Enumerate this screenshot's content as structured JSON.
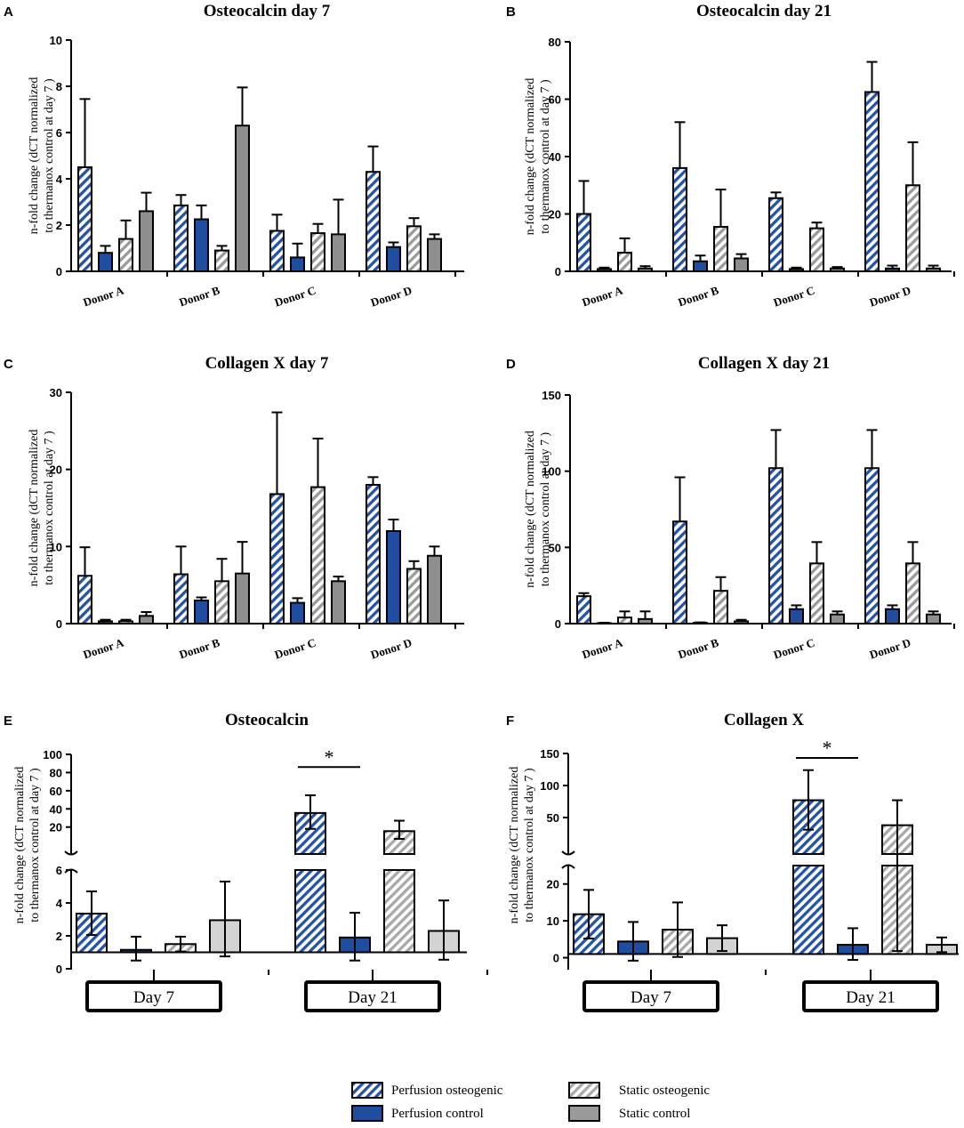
{
  "series_styles": [
    {
      "name": "Perfusion osteogenic",
      "color": "#2452a4",
      "pattern": "hatch"
    },
    {
      "name": "Perfusion control",
      "color": "#1f4ea1",
      "pattern": "solid"
    },
    {
      "name": "Static osteogenic",
      "color": "#9a9a9a",
      "pattern": "hatch"
    },
    {
      "name": "Static control",
      "color": "#8e8e8e",
      "pattern": "solid"
    }
  ],
  "legend": {
    "items": [
      "Perfusion osteogenic",
      "Perfusion control",
      "Static osteogenic",
      "Static control"
    ]
  },
  "chart_data": [
    {
      "letter": "A",
      "type": "bar",
      "title": "Osteocalcin day 7",
      "ylabel": [
        "n-fold change (dCT normalized",
        "to thermanox control at day 7 )"
      ],
      "categories": [
        "Donor A",
        "Donor B",
        "Donor C",
        "Donor D"
      ],
      "ylim": [
        0,
        10
      ],
      "yticks": [
        0,
        2,
        4,
        6,
        8,
        10
      ],
      "series": [
        {
          "name": "Perfusion osteogenic",
          "values": [
            4.5,
            2.85,
            1.75,
            4.3
          ],
          "errors": [
            2.95,
            0.45,
            0.7,
            1.1
          ]
        },
        {
          "name": "Perfusion control",
          "values": [
            0.8,
            2.25,
            0.6,
            1.05
          ],
          "errors": [
            0.3,
            0.6,
            0.6,
            0.2
          ]
        },
        {
          "name": "Static osteogenic",
          "values": [
            1.4,
            0.9,
            1.65,
            1.95
          ],
          "errors": [
            0.8,
            0.2,
            0.4,
            0.35
          ]
        },
        {
          "name": "Static control",
          "values": [
            2.6,
            6.3,
            1.6,
            1.4
          ],
          "errors": [
            0.8,
            1.65,
            1.5,
            0.2
          ]
        }
      ]
    },
    {
      "letter": "B",
      "type": "bar",
      "title": "Osteocalcin day 21",
      "ylabel": [
        "n-fold change (dCT normalized",
        "to thermanox control at day 7 )"
      ],
      "categories": [
        "Donor A",
        "Donor B",
        "Donor C",
        "Donor D"
      ],
      "ylim": [
        0,
        80
      ],
      "yticks": [
        0,
        20,
        40,
        60,
        80
      ],
      "series": [
        {
          "name": "Perfusion osteogenic",
          "values": [
            20,
            36,
            25.5,
            62.5
          ],
          "errors": [
            11.5,
            16,
            2,
            10.5
          ]
        },
        {
          "name": "Perfusion control",
          "values": [
            0.8,
            3.5,
            0.8,
            1
          ],
          "errors": [
            0.5,
            2,
            0.5,
            1
          ]
        },
        {
          "name": "Static osteogenic",
          "values": [
            6.5,
            15.5,
            15,
            30
          ],
          "errors": [
            5,
            13,
            2,
            15
          ]
        },
        {
          "name": "Static control",
          "values": [
            1,
            4.5,
            1,
            1
          ],
          "errors": [
            0.8,
            1.5,
            0.5,
            1
          ]
        }
      ]
    },
    {
      "letter": "C",
      "type": "bar",
      "title": "Collagen X day 7",
      "ylabel": [
        "n-fold change (dCT normalized",
        "to thermanox control at day 7 )"
      ],
      "categories": [
        "Donor A",
        "Donor B",
        "Donor C",
        "Donor D"
      ],
      "ylim": [
        0,
        30
      ],
      "yticks": [
        0,
        10,
        20,
        30
      ],
      "series": [
        {
          "name": "Perfusion osteogenic",
          "values": [
            6.2,
            6.4,
            16.8,
            18
          ],
          "errors": [
            3.7,
            3.6,
            10.6,
            1
          ]
        },
        {
          "name": "Perfusion control",
          "values": [
            0.3,
            3,
            2.7,
            12
          ],
          "errors": [
            0.2,
            0.4,
            0.6,
            1.5
          ]
        },
        {
          "name": "Static osteogenic",
          "values": [
            0.3,
            5.5,
            17.7,
            7.1
          ],
          "errors": [
            0.2,
            2.9,
            6.3,
            1
          ]
        },
        {
          "name": "Static control",
          "values": [
            1,
            6.5,
            5.5,
            8.8
          ],
          "errors": [
            0.5,
            4.1,
            0.6,
            1.2
          ]
        }
      ]
    },
    {
      "letter": "D",
      "type": "bar",
      "title": "Collagen X day 21",
      "ylabel": [
        "n-fold change (dCT normalized",
        "to thermanox control at day 7 )"
      ],
      "categories": [
        "Donor A",
        "Donor B",
        "Donor C",
        "Donor D"
      ],
      "ylim": [
        0,
        150
      ],
      "yticks": [
        0,
        50,
        100,
        150
      ],
      "series": [
        {
          "name": "Perfusion osteogenic",
          "values": [
            18,
            67,
            102,
            102
          ],
          "errors": [
            2,
            29,
            25,
            25
          ]
        },
        {
          "name": "Perfusion control",
          "values": [
            0.3,
            0.5,
            9.5,
            9.5
          ],
          "errors": [
            0.3,
            0.3,
            2.5,
            2.5
          ]
        },
        {
          "name": "Static osteogenic",
          "values": [
            4,
            21.5,
            39.5,
            39.5
          ],
          "errors": [
            4,
            9,
            14,
            14
          ]
        },
        {
          "name": "Static control",
          "values": [
            3,
            1.5,
            6,
            6
          ],
          "errors": [
            5,
            1,
            2,
            2
          ]
        }
      ]
    },
    {
      "letter": "E",
      "type": "bar",
      "title": "Osteocalcin",
      "ylabel": [
        "n-fold change (dCT normalized",
        "to thermanox control at day 7 )"
      ],
      "categories": [
        "Day 7",
        "Day 21"
      ],
      "broken_axis": {
        "lower": {
          "ylim": [
            0,
            6
          ],
          "yticks": [
            0,
            2,
            4,
            6
          ]
        },
        "upper": {
          "ylim": [
            6,
            100
          ],
          "yticks": [
            20,
            40,
            60,
            80,
            100
          ]
        },
        "baseline": 1
      },
      "series": [
        {
          "name": "Perfusion osteogenic",
          "values": [
            3.35,
            35.5
          ],
          "err_low": [
            2.05,
            18
          ],
          "err_high": [
            4.7,
            55
          ]
        },
        {
          "name": "Perfusion control",
          "values": [
            1.15,
            1.9
          ],
          "err_low": [
            0.5,
            0.5
          ],
          "err_high": [
            1.95,
            3.4
          ]
        },
        {
          "name": "Static osteogenic",
          "values": [
            1.5,
            15.5
          ],
          "err_low": [
            1.05,
            7
          ],
          "err_high": [
            1.95,
            27
          ]
        },
        {
          "name": "Static control",
          "values": [
            2.95,
            2.3
          ],
          "err_low": [
            0.75,
            0.55
          ],
          "err_high": [
            5.3,
            4.15
          ]
        }
      ],
      "significance": {
        "label": "*",
        "group": 1,
        "between": [
          0,
          1
        ]
      }
    },
    {
      "letter": "F",
      "type": "bar",
      "title": "Collagen X",
      "ylabel": [
        "n-fold change (dCT normalized",
        "to thermanox control at day 7 )"
      ],
      "categories": [
        "Day 7",
        "Day 21"
      ],
      "broken_axis": {
        "lower": {
          "ylim": [
            -3,
            25
          ],
          "yticks": [
            0,
            10,
            20
          ]
        },
        "upper": {
          "ylim": [
            25,
            150
          ],
          "yticks": [
            50,
            100,
            150
          ]
        },
        "baseline": 1
      },
      "series": [
        {
          "name": "Perfusion osteogenic",
          "values": [
            11.8,
            77
          ],
          "err_low": [
            5.2,
            31
          ],
          "err_high": [
            18.4,
            124
          ]
        },
        {
          "name": "Perfusion control",
          "values": [
            4.4,
            3.5
          ],
          "err_low": [
            -0.8,
            -0.6
          ],
          "err_high": [
            9.7,
            8
          ]
        },
        {
          "name": "Static osteogenic",
          "values": [
            7.6,
            38
          ],
          "err_low": [
            0.2,
            1.8
          ],
          "err_high": [
            15,
            77
          ]
        },
        {
          "name": "Static control",
          "values": [
            5.3,
            3.5
          ],
          "err_low": [
            1.8,
            1.5
          ],
          "err_high": [
            8.8,
            5.5
          ]
        }
      ],
      "significance": {
        "label": "*",
        "group": 1,
        "between": [
          0,
          1
        ]
      }
    }
  ]
}
